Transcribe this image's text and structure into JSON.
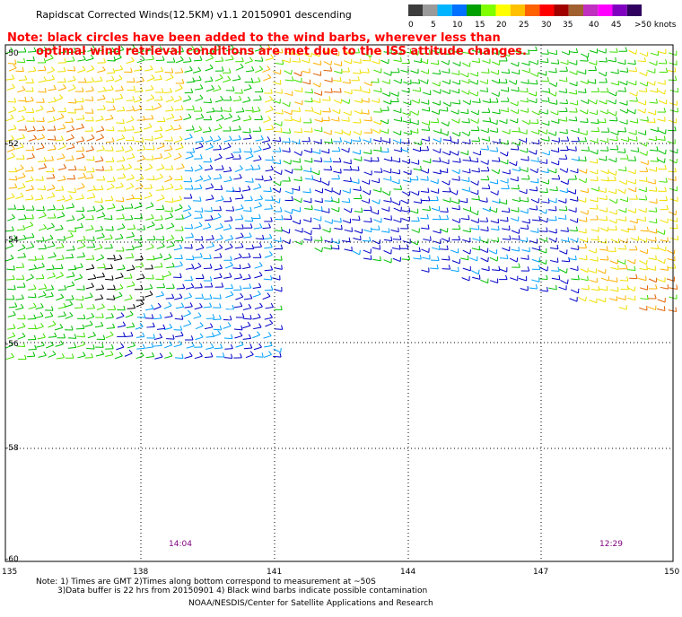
{
  "title": "Rapidscat Corrected Winds(12.5KM) v1.1 20150901 descending",
  "note_line1": "Note: black circles have been added to the wind barbs, wherever less than",
  "note_line2": "optimal wind retrieval conditions are met due to the ISS attitude changes.",
  "legend": {
    "labels": [
      "0",
      "5",
      "10",
      "15",
      "20",
      "25",
      "30",
      "35",
      "40",
      "45",
      ">50 knots"
    ],
    "colors": [
      "#3c3c3c",
      "#9a9a9a",
      "#00b4ff",
      "#0070ff",
      "#00a000",
      "#80ff00",
      "#ffff00",
      "#ffc000",
      "#ff6000",
      "#ff0000",
      "#a00000",
      "#a06030",
      "#c030c0",
      "#ff00ff",
      "#8000c0",
      "#300060"
    ]
  },
  "lat_labels": [
    "-50",
    "-52",
    "-54",
    "-56",
    "-58",
    "-60"
  ],
  "lon_labels": [
    "135",
    "138",
    "141",
    "144",
    "147",
    "150"
  ],
  "times": [
    "14:04",
    "12:29"
  ],
  "footer_line1": "Note: 1) Times are GMT 2)Times along bottom correspond to measurement at ~50S",
  "footer_line2": "3)Data buffer is 22 hrs from 20150901 4) Black wind barbs indicate possible contamination",
  "footer_line3": "NOAA/NESDIS/Center for Satellite Applications and Research",
  "barb_colors": {
    "calm": "#0000c8",
    "light": "#00a0ff",
    "moderate": "#00c000",
    "fresh": "#40e000",
    "strong": "#f0e000",
    "gale": "#ffb000",
    "storm": "#e06000",
    "contaminated": "#000000"
  }
}
